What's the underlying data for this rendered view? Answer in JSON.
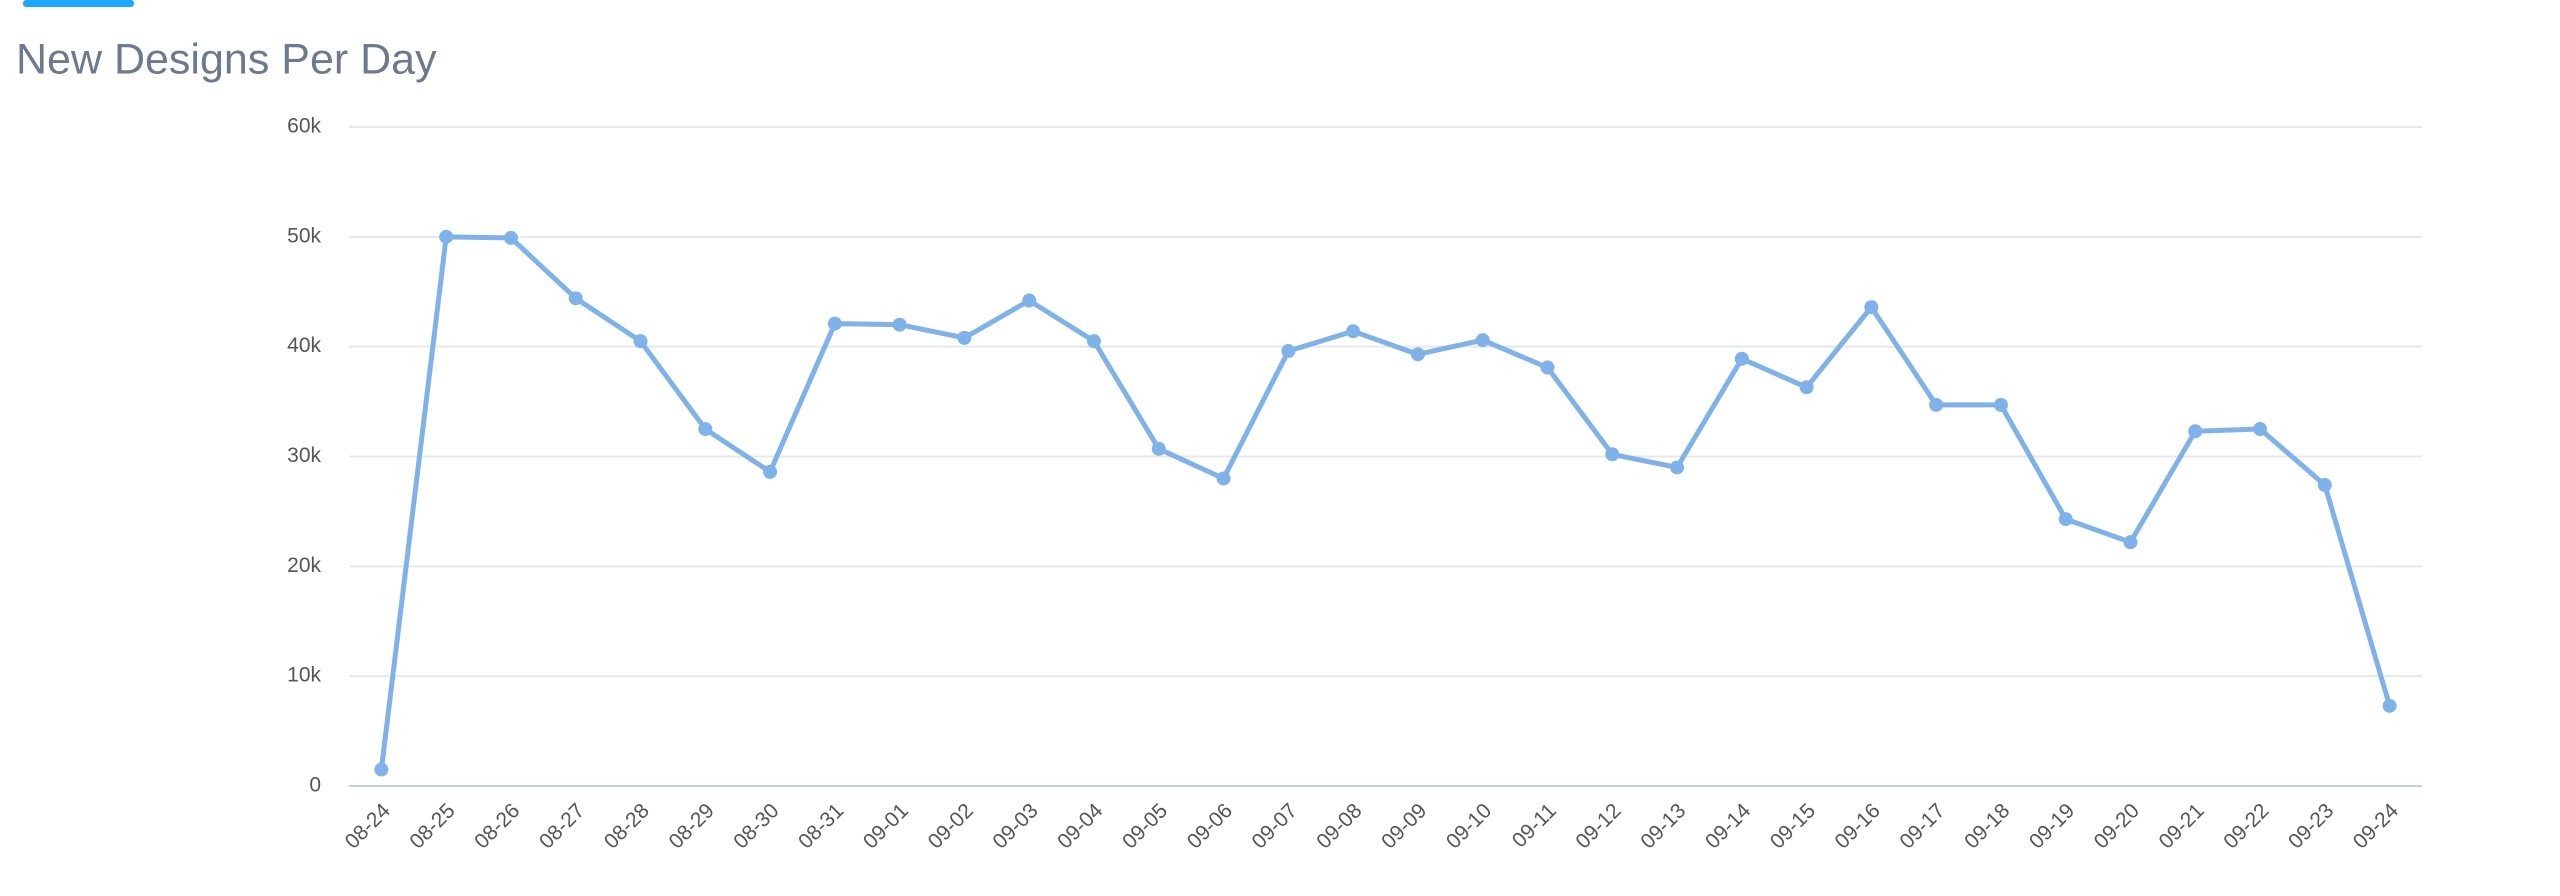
{
  "chart_data": {
    "type": "line",
    "title": "New Designs Per Day",
    "categories": [
      "08-24",
      "08-25",
      "08-26",
      "08-27",
      "08-28",
      "08-29",
      "08-30",
      "08-31",
      "09-01",
      "09-02",
      "09-03",
      "09-04",
      "09-05",
      "09-06",
      "09-07",
      "09-08",
      "09-09",
      "09-10",
      "09-11",
      "09-12",
      "09-13",
      "09-14",
      "09-15",
      "09-16",
      "09-17",
      "09-18",
      "09-19",
      "09-20",
      "09-21",
      "09-22",
      "09-23",
      "09-24"
    ],
    "series": [
      {
        "color": "#7fb2e8",
        "values": [
          1500,
          50000,
          49900,
          44400,
          40500,
          32500,
          28600,
          42100,
          42000,
          40800,
          44200,
          40500,
          30700,
          28000,
          39600,
          41400,
          39300,
          40600,
          38100,
          30200,
          29000,
          38900,
          36300,
          43600,
          34700,
          34700,
          24300,
          22200,
          32300,
          32500,
          27400,
          7300
        ]
      }
    ],
    "ylim": [
      0,
      60000
    ],
    "yticks": [
      0,
      {
        "value": 10000,
        "label": "10k"
      },
      {
        "value": 20000,
        "label": "20k"
      },
      {
        "value": 30000,
        "label": "30k"
      },
      {
        "value": 40000,
        "label": "40k"
      },
      {
        "value": 50000,
        "label": "50k"
      },
      {
        "value": 60000,
        "label": "60k"
      }
    ],
    "grid": true
  }
}
